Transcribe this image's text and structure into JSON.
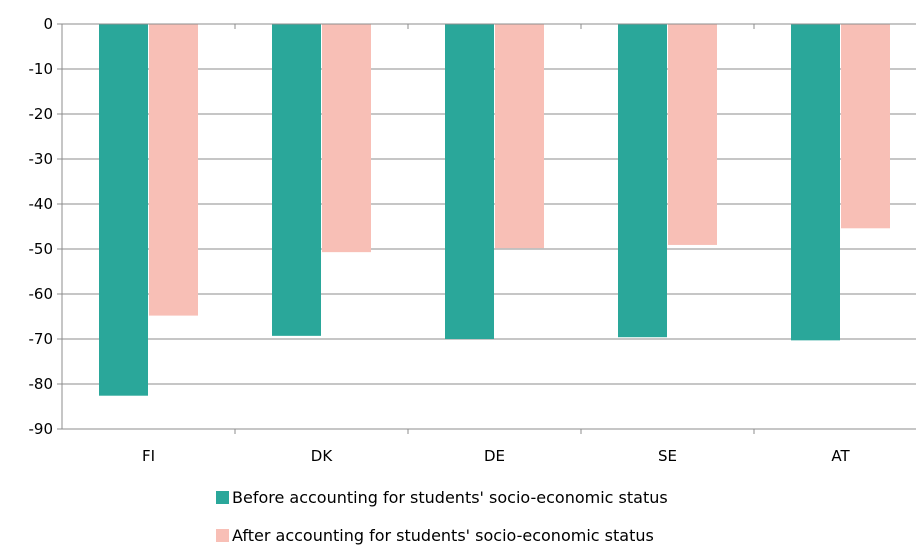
{
  "chart_data": {
    "type": "bar",
    "title": "",
    "xlabel": "",
    "ylabel": "",
    "categories": [
      "FI",
      "DK",
      "DE",
      "SE",
      "AT"
    ],
    "ylim": [
      -90,
      0
    ],
    "yticks": [
      0,
      -10,
      -20,
      -30,
      -40,
      -50,
      -60,
      -70,
      -80,
      -90
    ],
    "grid": true,
    "legend_position": "bottom",
    "series": [
      {
        "name": "Before accounting for students' socio-economic status",
        "color": "#2aa79a",
        "values": [
          -82.6,
          -69.3,
          -70.0,
          -69.6,
          -70.3
        ]
      },
      {
        "name": "After accounting for students' socio-economic status",
        "color": "#f8bfb6",
        "values": [
          -64.8,
          -50.7,
          -49.8,
          -49.1,
          -45.4
        ]
      }
    ]
  }
}
